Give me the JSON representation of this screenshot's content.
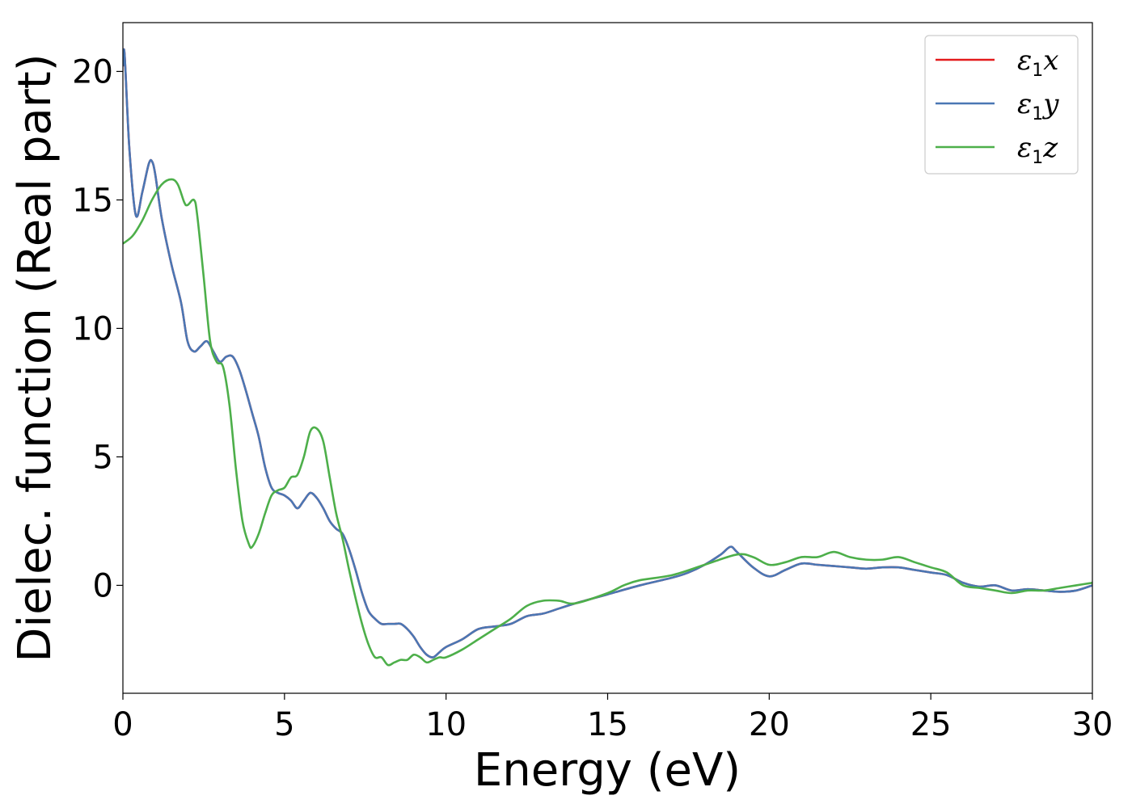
{
  "chart_data": {
    "type": "line",
    "title": "",
    "xlabel": "Energy (eV)",
    "ylabel": "Dielec. function (Real part)",
    "xlim": [
      0,
      30
    ],
    "ylim": [
      -4.2,
      21.9
    ],
    "xticks": [
      0,
      5,
      10,
      15,
      20,
      25,
      30
    ],
    "yticks": [
      0,
      5,
      10,
      15,
      20
    ],
    "grid": false,
    "legend_position": "top-right",
    "series": [
      {
        "name": "ε1x",
        "name_base": "ε",
        "name_sub": "1",
        "name_suffix": "x",
        "color": "#e41a1c",
        "x": [
          0,
          0.05,
          0.2,
          0.4,
          0.6,
          0.8,
          0.9,
          1.0,
          1.2,
          1.5,
          1.8,
          2.0,
          2.2,
          2.4,
          2.6,
          2.8,
          3.0,
          3.2,
          3.4,
          3.6,
          3.8,
          4.0,
          4.2,
          4.4,
          4.6,
          4.8,
          5.0,
          5.2,
          5.4,
          5.6,
          5.8,
          6.0,
          6.2,
          6.4,
          6.6,
          6.8,
          7.0,
          7.2,
          7.4,
          7.6,
          7.8,
          8.0,
          8.2,
          8.4,
          8.6,
          8.8,
          9.0,
          9.2,
          9.4,
          9.6,
          9.8,
          10.0,
          10.5,
          11.0,
          11.5,
          12.0,
          12.5,
          13.0,
          13.5,
          14.0,
          15.0,
          16.0,
          17.0,
          17.5,
          18.0,
          18.5,
          18.8,
          19.0,
          19.5,
          20.0,
          20.5,
          21.0,
          21.5,
          22.0,
          22.5,
          23.0,
          23.5,
          24.0,
          24.5,
          25.0,
          25.5,
          26.0,
          26.5,
          27.0,
          27.5,
          28.0,
          28.5,
          29.0,
          29.5,
          30.0
        ],
        "y": [
          20.2,
          20.7,
          17.0,
          14.4,
          15.3,
          16.4,
          16.5,
          16.0,
          14.3,
          12.5,
          11.0,
          9.5,
          9.1,
          9.3,
          9.5,
          9.1,
          8.7,
          8.9,
          8.9,
          8.4,
          7.6,
          6.7,
          5.8,
          4.6,
          3.8,
          3.6,
          3.5,
          3.3,
          3.0,
          3.3,
          3.6,
          3.4,
          3.0,
          2.5,
          2.2,
          2.0,
          1.4,
          0.6,
          -0.3,
          -1.0,
          -1.3,
          -1.5,
          -1.5,
          -1.5,
          -1.5,
          -1.7,
          -2.0,
          -2.4,
          -2.7,
          -2.8,
          -2.6,
          -2.4,
          -2.1,
          -1.7,
          -1.6,
          -1.5,
          -1.2,
          -1.1,
          -0.9,
          -0.7,
          -0.35,
          0.0,
          0.3,
          0.5,
          0.8,
          1.2,
          1.5,
          1.3,
          0.7,
          0.35,
          0.6,
          0.85,
          0.8,
          0.75,
          0.7,
          0.65,
          0.7,
          0.7,
          0.6,
          0.5,
          0.4,
          0.1,
          -0.05,
          0.0,
          -0.2,
          -0.15,
          -0.2,
          -0.25,
          -0.2,
          0.0
        ]
      },
      {
        "name": "ε1y",
        "name_base": "ε",
        "name_sub": "1",
        "name_suffix": "y",
        "color": "#4a77b4",
        "x": [
          0,
          0.05,
          0.2,
          0.4,
          0.6,
          0.8,
          0.9,
          1.0,
          1.2,
          1.5,
          1.8,
          2.0,
          2.2,
          2.4,
          2.6,
          2.8,
          3.0,
          3.2,
          3.4,
          3.6,
          3.8,
          4.0,
          4.2,
          4.4,
          4.6,
          4.8,
          5.0,
          5.2,
          5.4,
          5.6,
          5.8,
          6.0,
          6.2,
          6.4,
          6.6,
          6.8,
          7.0,
          7.2,
          7.4,
          7.6,
          7.8,
          8.0,
          8.2,
          8.4,
          8.6,
          8.8,
          9.0,
          9.2,
          9.4,
          9.6,
          9.8,
          10.0,
          10.5,
          11.0,
          11.5,
          12.0,
          12.5,
          13.0,
          13.5,
          14.0,
          15.0,
          16.0,
          17.0,
          17.5,
          18.0,
          18.5,
          18.8,
          19.0,
          19.5,
          20.0,
          20.5,
          21.0,
          21.5,
          22.0,
          22.5,
          23.0,
          23.5,
          24.0,
          24.5,
          25.0,
          25.5,
          26.0,
          26.5,
          27.0,
          27.5,
          28.0,
          28.5,
          29.0,
          29.5,
          30.0
        ],
        "y": [
          20.2,
          20.7,
          17.0,
          14.4,
          15.3,
          16.4,
          16.5,
          16.0,
          14.3,
          12.5,
          11.0,
          9.5,
          9.1,
          9.3,
          9.5,
          9.1,
          8.7,
          8.9,
          8.9,
          8.4,
          7.6,
          6.7,
          5.8,
          4.6,
          3.8,
          3.6,
          3.5,
          3.3,
          3.0,
          3.3,
          3.6,
          3.4,
          3.0,
          2.5,
          2.2,
          2.0,
          1.4,
          0.6,
          -0.3,
          -1.0,
          -1.3,
          -1.5,
          -1.5,
          -1.5,
          -1.5,
          -1.7,
          -2.0,
          -2.4,
          -2.7,
          -2.8,
          -2.6,
          -2.4,
          -2.1,
          -1.7,
          -1.6,
          -1.5,
          -1.2,
          -1.1,
          -0.9,
          -0.7,
          -0.35,
          0.0,
          0.3,
          0.5,
          0.8,
          1.2,
          1.5,
          1.3,
          0.7,
          0.35,
          0.6,
          0.85,
          0.8,
          0.75,
          0.7,
          0.65,
          0.7,
          0.7,
          0.6,
          0.5,
          0.4,
          0.1,
          -0.05,
          0.0,
          -0.2,
          -0.15,
          -0.2,
          -0.25,
          -0.2,
          0.0
        ]
      },
      {
        "name": "ε1z",
        "name_base": "ε",
        "name_sub": "1",
        "name_suffix": "z",
        "color": "#4daf4a",
        "x": [
          0,
          0.3,
          0.6,
          0.9,
          1.2,
          1.5,
          1.7,
          1.9,
          2.0,
          2.2,
          2.3,
          2.5,
          2.7,
          2.9,
          3.1,
          3.3,
          3.5,
          3.7,
          3.9,
          4.0,
          4.2,
          4.4,
          4.6,
          4.8,
          5.0,
          5.2,
          5.4,
          5.6,
          5.8,
          6.0,
          6.2,
          6.4,
          6.6,
          6.8,
          7.0,
          7.2,
          7.4,
          7.6,
          7.8,
          8.0,
          8.2,
          8.4,
          8.6,
          8.8,
          9.0,
          9.2,
          9.4,
          9.6,
          9.8,
          10.0,
          10.5,
          11.0,
          11.5,
          12.0,
          12.5,
          13.0,
          13.5,
          14.0,
          15.0,
          15.5,
          16.0,
          17.0,
          18.0,
          19.0,
          19.5,
          20.0,
          20.5,
          21.0,
          21.5,
          22.0,
          22.5,
          23.0,
          23.5,
          24.0,
          24.5,
          25.0,
          25.5,
          26.0,
          26.5,
          27.0,
          27.5,
          28.0,
          28.5,
          29.0,
          29.5,
          30.0
        ],
        "y": [
          13.3,
          13.6,
          14.2,
          15.0,
          15.6,
          15.8,
          15.6,
          14.9,
          14.8,
          15.0,
          14.4,
          12.0,
          9.5,
          8.7,
          8.5,
          7.0,
          4.5,
          2.5,
          1.6,
          1.5,
          2.0,
          2.8,
          3.5,
          3.7,
          3.8,
          4.2,
          4.3,
          5.0,
          6.0,
          6.1,
          5.6,
          4.2,
          2.8,
          1.8,
          0.6,
          -0.5,
          -1.5,
          -2.3,
          -2.8,
          -2.8,
          -3.1,
          -3.0,
          -2.9,
          -2.9,
          -2.7,
          -2.8,
          -3.0,
          -2.9,
          -2.8,
          -2.8,
          -2.5,
          -2.1,
          -1.7,
          -1.3,
          -0.8,
          -0.6,
          -0.6,
          -0.7,
          -0.3,
          0.0,
          0.2,
          0.4,
          0.8,
          1.2,
          1.1,
          0.8,
          0.9,
          1.1,
          1.1,
          1.3,
          1.1,
          1.0,
          1.0,
          1.1,
          0.9,
          0.7,
          0.5,
          0.0,
          -0.1,
          -0.2,
          -0.3,
          -0.2,
          -0.2,
          -0.1,
          0.0,
          0.1
        ]
      }
    ]
  }
}
